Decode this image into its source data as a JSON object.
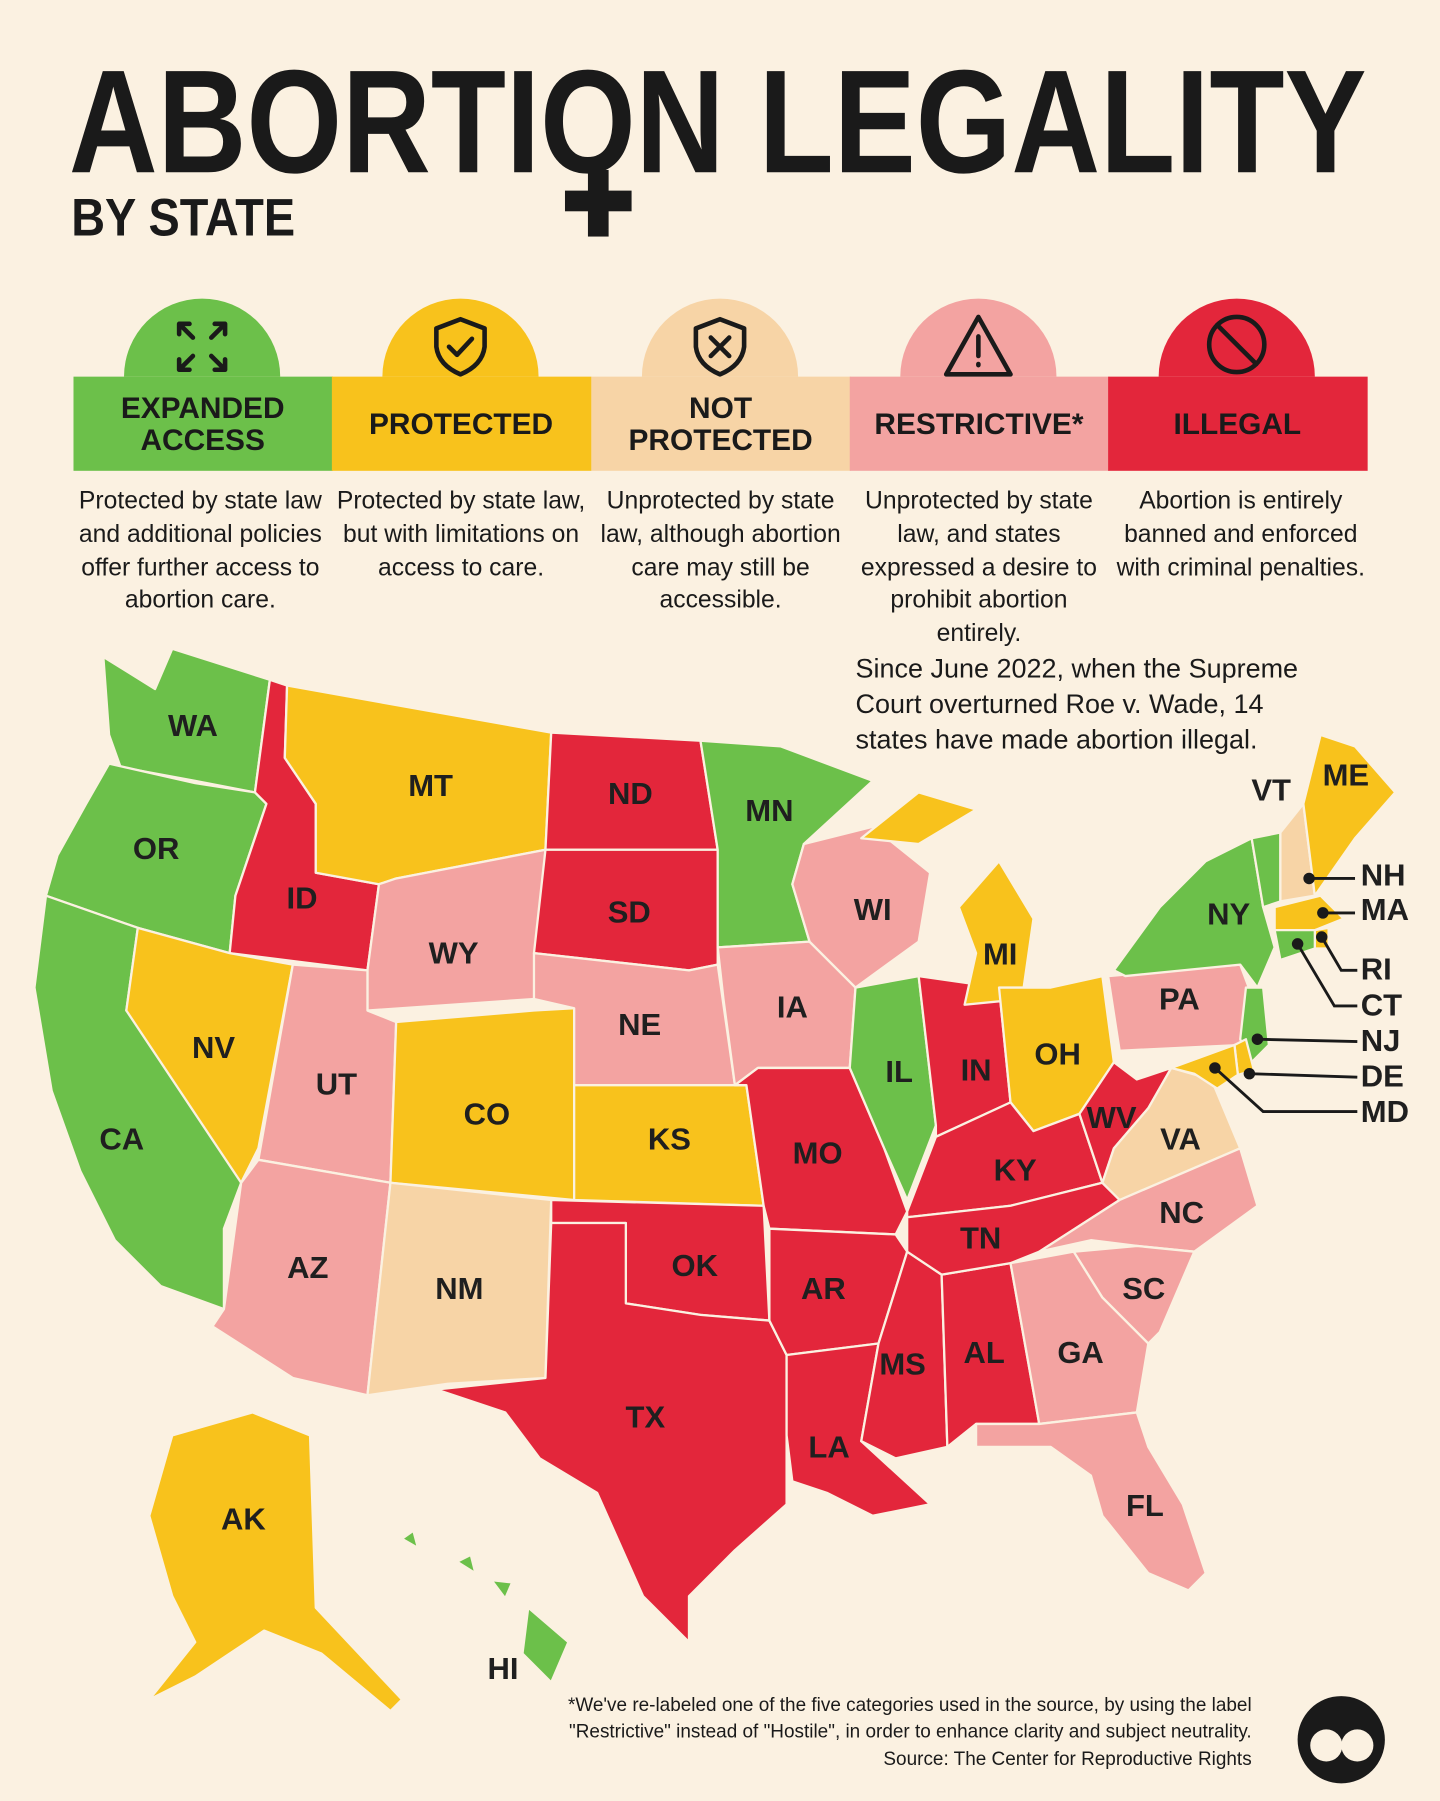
{
  "header": {
    "title": "ABORTION LEGALITY",
    "subtitle": "BY STATE"
  },
  "legend": {
    "items": [
      {
        "label": "EXPANDED ACCESS",
        "color": "#6cc04a",
        "description": "Protected by state law and additional policies offer further access to abortion care.",
        "states": [
          "WA",
          "OR",
          "CA",
          "MN",
          "IL",
          "NY",
          "VT",
          "NJ",
          "CT",
          "HI"
        ]
      },
      {
        "label": "PROTECTED",
        "color": "#f8c21c",
        "description": "Protected by state law, but with limitations on access to care.",
        "states": [
          "MT",
          "NV",
          "CO",
          "KS",
          "MI",
          "OH",
          "ME",
          "MA",
          "RI",
          "DE",
          "MD",
          "AK"
        ]
      },
      {
        "label": "NOT PROTECTED",
        "color": "#f7d4a6",
        "description": "Unprotected by state law, although abortion care may still be accessible.",
        "states": [
          "NM",
          "VA",
          "NH"
        ]
      },
      {
        "label": "RESTRICTIVE*",
        "color": "#f3a3a1",
        "description": "Unprotected by state law, and states expressed a desire to prohibit abortion entirely.",
        "states": [
          "UT",
          "AZ",
          "WY",
          "NE",
          "IA",
          "WI",
          "PA",
          "NC",
          "SC",
          "GA",
          "FL"
        ]
      },
      {
        "label": "ILLEGAL",
        "color": "#e3263b",
        "description": "Abortion is entirely banned and enforced with criminal penalties.",
        "states": [
          "ID",
          "ND",
          "SD",
          "OK",
          "TX",
          "MO",
          "AR",
          "LA",
          "MS",
          "AL",
          "TN",
          "KY",
          "IN",
          "WV"
        ]
      }
    ]
  },
  "annotation": "Since June 2022, when the Supreme Court overturned Roe v. Wade, 14 states have made abortion illegal.",
  "footnote": "*We've re-labeled one of the five categories used in the source, by using the label \"Restrictive\" instead of \"Hostile\", in order to enhance clarity and subject neutrality.",
  "source": "Source: The Center for Reproductive Rights"
}
